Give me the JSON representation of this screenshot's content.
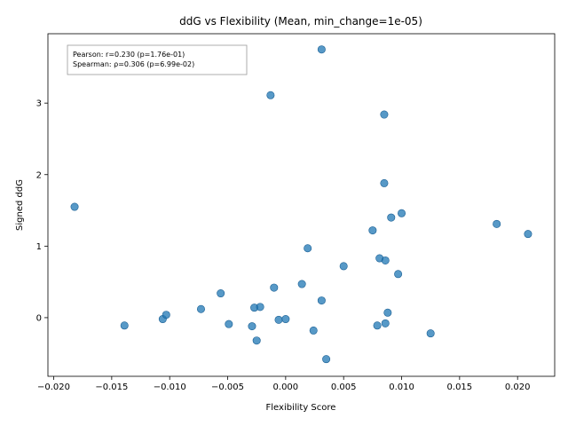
{
  "chart_data": {
    "type": "scatter",
    "title": "ddG vs Flexibility (Mean, min_change=1e-05)",
    "xlabel": "Flexibility Score",
    "ylabel": "Signed ddG",
    "xlim": [
      -0.0205,
      0.0232
    ],
    "ylim": [
      -0.82,
      3.97
    ],
    "xticks": [
      -0.02,
      -0.015,
      -0.01,
      -0.005,
      0.0,
      0.005,
      0.01,
      0.015,
      0.02
    ],
    "xtick_labels": [
      "−0.020",
      "−0.015",
      "−0.010",
      "−0.005",
      "0.000",
      "0.005",
      "0.010",
      "0.015",
      "0.020"
    ],
    "yticks": [
      0,
      1,
      2,
      3
    ],
    "ytick_labels": [
      "0",
      "1",
      "2",
      "3"
    ],
    "grid": false,
    "point_color": "#1f77b4",
    "point_edge_color": "#1a5f94",
    "stats": [
      "Pearson: r=0.230 (p=1.76e-01)",
      "Spearman: ρ=0.306 (p=6.99e-02)"
    ],
    "points": [
      {
        "x": -0.0182,
        "y": 1.55
      },
      {
        "x": -0.0139,
        "y": -0.11
      },
      {
        "x": -0.0106,
        "y": -0.02
      },
      {
        "x": -0.0103,
        "y": 0.04
      },
      {
        "x": -0.0073,
        "y": 0.12
      },
      {
        "x": -0.0056,
        "y": 0.34
      },
      {
        "x": -0.0049,
        "y": -0.09
      },
      {
        "x": -0.0029,
        "y": -0.12
      },
      {
        "x": -0.0027,
        "y": 0.14
      },
      {
        "x": -0.0025,
        "y": -0.32
      },
      {
        "x": -0.0022,
        "y": 0.15
      },
      {
        "x": -0.0013,
        "y": 3.11
      },
      {
        "x": -0.001,
        "y": 0.42
      },
      {
        "x": -0.0006,
        "y": -0.03
      },
      {
        "x": 0.0,
        "y": -0.02
      },
      {
        "x": 0.0014,
        "y": 0.47
      },
      {
        "x": 0.0019,
        "y": 0.97
      },
      {
        "x": 0.0024,
        "y": -0.18
      },
      {
        "x": 0.0031,
        "y": 3.75
      },
      {
        "x": 0.0031,
        "y": 0.24
      },
      {
        "x": 0.0035,
        "y": -0.58
      },
      {
        "x": 0.005,
        "y": 0.72
      },
      {
        "x": 0.0075,
        "y": 1.22
      },
      {
        "x": 0.0079,
        "y": -0.11
      },
      {
        "x": 0.0081,
        "y": 0.83
      },
      {
        "x": 0.0085,
        "y": 2.84
      },
      {
        "x": 0.0085,
        "y": 1.88
      },
      {
        "x": 0.0086,
        "y": 0.8
      },
      {
        "x": 0.0086,
        "y": -0.08
      },
      {
        "x": 0.0088,
        "y": 0.07
      },
      {
        "x": 0.0091,
        "y": 1.4
      },
      {
        "x": 0.0097,
        "y": 0.61
      },
      {
        "x": 0.01,
        "y": 1.46
      },
      {
        "x": 0.0125,
        "y": -0.22
      },
      {
        "x": 0.0182,
        "y": 1.31
      },
      {
        "x": 0.0209,
        "y": 1.17
      }
    ]
  }
}
